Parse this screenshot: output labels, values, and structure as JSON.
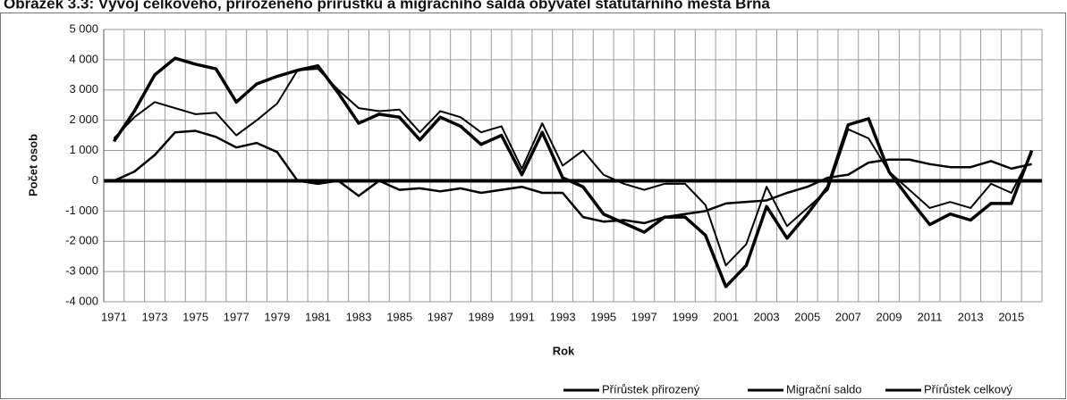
{
  "chart_data": {
    "type": "line",
    "title": "Obrázek 3.3: Vývoj celkového, přirozeného přírůstku a migračního salda obyvatel statutárního města Brna",
    "x_label": "Rok",
    "y_label": "Počet osob",
    "categories": [
      "1971",
      null,
      "1973",
      null,
      "1975",
      null,
      "1977",
      null,
      "1979",
      null,
      "1981",
      null,
      "1983",
      null,
      "1985",
      null,
      "1987",
      null,
      "1989",
      null,
      "1991",
      null,
      "1993",
      null,
      "1995",
      null,
      "1997",
      null,
      "1999",
      null,
      "2001",
      null,
      "2003",
      null,
      "2005",
      null,
      "2007",
      null,
      "2009",
      null,
      "2011",
      null,
      "2013",
      null,
      "2015",
      null
    ],
    "series": [
      {
        "name": "Přírůstek přirozený",
        "color": "#000000",
        "values": [
          0,
          300,
          850,
          1600,
          1650,
          1450,
          1100,
          1250,
          950,
          0,
          -100,
          0,
          -500,
          0,
          -300,
          -250,
          -350,
          -250,
          -400,
          -300,
          -200,
          -400,
          -400,
          -1200,
          -1350,
          -1300,
          -1400,
          -1200,
          -1100,
          -1000,
          -750,
          -700,
          -650,
          -400,
          -200,
          100,
          200,
          600,
          700,
          700,
          550,
          450,
          450,
          650,
          400,
          550
        ]
      },
      {
        "name": "Migrační saldo",
        "color": "#000000",
        "values": [
          1400,
          2100,
          2600,
          2400,
          2200,
          2250,
          1500,
          2000,
          2550,
          3650,
          3700,
          3000,
          2400,
          2300,
          2350,
          1600,
          2300,
          2100,
          1600,
          1800,
          400,
          1900,
          500,
          1000,
          200,
          -100,
          -300,
          -100,
          -100,
          -800,
          -2800,
          -2100,
          -200,
          -1500,
          -900,
          -300,
          1700,
          1400,
          300,
          -300,
          -900,
          -700,
          -900,
          -100,
          -400,
          900
        ]
      },
      {
        "name": "Přírůstek celkový",
        "color": "#000000",
        "values": [
          1300,
          2300,
          3500,
          4050,
          3850,
          3700,
          2600,
          3200,
          3450,
          3650,
          3800,
          2900,
          1900,
          2200,
          2100,
          1350,
          2100,
          1800,
          1200,
          1500,
          200,
          1600,
          100,
          -200,
          -1100,
          -1400,
          -1700,
          -1200,
          -1200,
          -1800,
          -3500,
          -2800,
          -850,
          -1900,
          -1100,
          -200,
          1850,
          2050,
          300,
          -600,
          -1450,
          -1100,
          -1300,
          -750,
          -750,
          1000
        ]
      }
    ],
    "ylim": [
      -4000,
      5000
    ],
    "yticks": [
      {
        "value": -4000,
        "label": "-4 000"
      },
      {
        "value": -3000,
        "label": "-3 000"
      },
      {
        "value": -2000,
        "label": "-2 000"
      },
      {
        "value": -1000,
        "label": "-1 000"
      },
      0,
      {
        "value": 1000,
        "label": "1 000"
      },
      {
        "value": 2000,
        "label": "2 000"
      },
      {
        "value": 3000,
        "label": "3 000"
      },
      {
        "value": 4000,
        "label": "4 000"
      },
      {
        "value": 5000,
        "label": "5 000"
      }
    ],
    "grid": true,
    "legend": "bottom-right"
  }
}
